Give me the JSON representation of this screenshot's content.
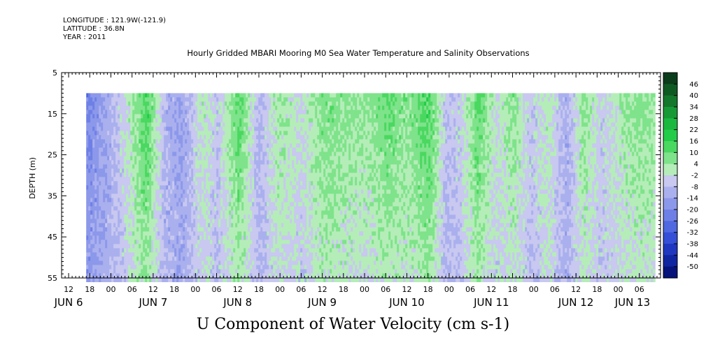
{
  "header": {
    "longitude": "LONGITUDE : 121.9W(-121.9)",
    "latitude": "LATITUDE : 36.8N",
    "year": "YEAR : 2011"
  },
  "chart_data": {
    "type": "heatmap",
    "title": "Hourly Gridded MBARI Mooring M0 Sea Water Temperature and Salinity Observations",
    "ylabel": "DEPTH (m)",
    "bottom_label": "U Component of Water Velocity (cm s-1)",
    "ylim": [
      5,
      55
    ],
    "y_reversed": true,
    "y_ticks": [
      5,
      15,
      25,
      35,
      45,
      55
    ],
    "data_depth_range": [
      10,
      55
    ],
    "x_axis": {
      "start": "2011-06-06T10:00",
      "end": "2011-06-13T12:00",
      "data_start": "2011-06-06T17:00",
      "hour_tick_labels": [
        "12",
        "18",
        "00",
        "06",
        "12",
        "18",
        "00",
        "06",
        "12",
        "18",
        "00",
        "06",
        "12",
        "18",
        "00",
        "06",
        "12",
        "18",
        "00",
        "06",
        "12",
        "18",
        "00",
        "06",
        "12",
        "18",
        "00",
        "06"
      ],
      "day_labels": [
        "JUN 6",
        "JUN 7",
        "JUN 8",
        "JUN 9",
        "JUN 10",
        "JUN 11",
        "JUN 12",
        "JUN 13"
      ]
    },
    "colorbar": {
      "levels": [
        48,
        46,
        40,
        34,
        28,
        22,
        16,
        10,
        4,
        -2,
        -8,
        -14,
        -20,
        -26,
        -32,
        -38,
        -44,
        -50
      ],
      "labels": [
        "46",
        "40",
        "34",
        "28",
        "22",
        "16",
        "10",
        "4",
        "-2",
        "-8",
        "-14",
        "-20",
        "-26",
        "-32",
        "-38",
        "-44",
        "-50"
      ],
      "colors": [
        "#0b3d1a",
        "#0f5a23",
        "#13782c",
        "#179a36",
        "#1bb83f",
        "#22cc48",
        "#4ad860",
        "#7ee38a",
        "#b5edb8",
        "#c8c8f0",
        "#aab0ee",
        "#8c98ea",
        "#6e80e6",
        "#5068e0",
        "#3550d6",
        "#2038c0",
        "#1025a0",
        "#05137a"
      ]
    },
    "columns_per_day": {
      "note_free": true,
      "days": [
        "JUN 6",
        "JUN 7",
        "JUN 8",
        "JUN 9",
        "JUN 10",
        "JUN 11",
        "JUN 12",
        "JUN 13"
      ]
    },
    "field_profile": [
      {
        "time": "2011-06-06T17:00",
        "u": -22
      },
      {
        "time": "2011-06-06T22:00",
        "u": -14
      },
      {
        "time": "2011-06-07T02:00",
        "u": -6
      },
      {
        "time": "2011-06-07T06:00",
        "u": 4
      },
      {
        "time": "2011-06-07T10:00",
        "u": 14
      },
      {
        "time": "2011-06-07T15:00",
        "u": -10
      },
      {
        "time": "2011-06-07T20:00",
        "u": -14
      },
      {
        "time": "2011-06-08T02:00",
        "u": 2
      },
      {
        "time": "2011-06-08T06:00",
        "u": -6
      },
      {
        "time": "2011-06-08T12:00",
        "u": 12
      },
      {
        "time": "2011-06-08T18:00",
        "u": -10
      },
      {
        "time": "2011-06-08T23:00",
        "u": 4
      },
      {
        "time": "2011-06-09T06:00",
        "u": -2
      },
      {
        "time": "2011-06-09T12:00",
        "u": 8
      },
      {
        "time": "2011-06-09T18:00",
        "u": 6
      },
      {
        "time": "2011-06-10T00:00",
        "u": 4
      },
      {
        "time": "2011-06-10T06:00",
        "u": 10
      },
      {
        "time": "2011-06-10T12:00",
        "u": 6
      },
      {
        "time": "2011-06-10T18:00",
        "u": 14
      },
      {
        "time": "2011-06-10T23:00",
        "u": -8
      },
      {
        "time": "2011-06-11T03:00",
        "u": -4
      },
      {
        "time": "2011-06-11T08:00",
        "u": 12
      },
      {
        "time": "2011-06-11T13:00",
        "u": -2
      },
      {
        "time": "2011-06-11T18:00",
        "u": 6
      },
      {
        "time": "2011-06-11T23:00",
        "u": -6
      },
      {
        "time": "2011-06-12T04:00",
        "u": 2
      },
      {
        "time": "2011-06-12T09:00",
        "u": -12
      },
      {
        "time": "2011-06-12T14:00",
        "u": 6
      },
      {
        "time": "2011-06-12T19:00",
        "u": -4
      },
      {
        "time": "2011-06-13T00:00",
        "u": 2
      },
      {
        "time": "2011-06-13T06:00",
        "u": 6
      },
      {
        "time": "2011-06-13T11:00",
        "u": 4
      }
    ]
  }
}
